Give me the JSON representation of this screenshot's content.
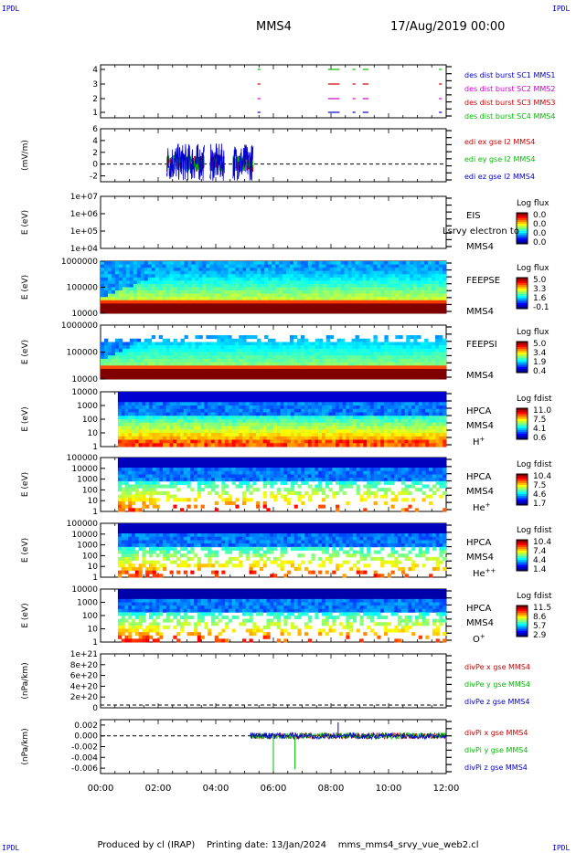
{
  "corner_labels": [
    "IPDL",
    "IPDL",
    "IPDL",
    "IPDL"
  ],
  "title": "MMS4",
  "date": "17/Aug/2019 00:00",
  "footer": {
    "produced_by": "Produced by cl (IRAP)",
    "printing_date": "Printing date: 13/Jan/2024",
    "file": "mms_mms4_srvy_vue_web2.cl"
  },
  "chart_data": [
    {
      "id": "burst",
      "type": "scatter",
      "yticks": [
        "1",
        "2",
        "3",
        "4"
      ],
      "legend": [
        {
          "text": "des dist burst SC1 MMS1",
          "color": "#0000cc"
        },
        {
          "text": "des dist burst SC2 MMS2",
          "color": "#cc00cc"
        },
        {
          "text": "des dist burst SC3 MMS3",
          "color": "#cc0000"
        },
        {
          "text": "des dist burst SC4 MMS4",
          "color": "#00bb00"
        }
      ],
      "intervals_hours": [
        [
          5.45,
          5.55
        ],
        [
          7.9,
          8.3
        ],
        [
          8.75,
          8.85
        ],
        [
          9.1,
          9.3
        ],
        [
          11.75,
          11.85
        ]
      ]
    },
    {
      "id": "edi",
      "type": "line",
      "ylabel": "(mV/m)",
      "yticks": [
        "6",
        "4",
        "2",
        "0",
        "-2"
      ],
      "ylim": [
        -3,
        6
      ],
      "legend": [
        {
          "text": "edi ex gse l2 MMS4",
          "color": "#cc0000"
        },
        {
          "text": "edi ey gse l2 MMS4",
          "color": "#00bb00"
        },
        {
          "text": "edi ez gse l2 MMS4",
          "color": "#0000cc"
        }
      ],
      "active_hours": [
        [
          2.3,
          3.6
        ],
        [
          3.8,
          4.3
        ],
        [
          4.6,
          5.3
        ]
      ]
    },
    {
      "id": "eis",
      "type": "heatmap",
      "ylabel": "E (eV)",
      "yticks": [
        "1e+07",
        "1e+06",
        "1e+05",
        "1e+04"
      ],
      "labels": [
        "EIS",
        "MMS4"
      ],
      "overlay": "Lsrvy electron to",
      "cbar_title": "Log flux",
      "cbar_ticks": [
        "0.0",
        "0.0",
        "0.0",
        "0.0"
      ]
    },
    {
      "id": "feepse",
      "type": "heatmap",
      "ylabel": "E (eV)",
      "yticks": [
        "1000000",
        "100000",
        "10000"
      ],
      "labels": [
        "FEEPSE",
        "MMS4"
      ],
      "cbar_title": "Log flux",
      "cbar_ticks": [
        "5.0",
        "3.3",
        "1.6",
        "-0.1"
      ]
    },
    {
      "id": "feepsi",
      "type": "heatmap",
      "ylabel": "E (eV)",
      "yticks": [
        "1000000",
        "100000",
        "10000"
      ],
      "labels": [
        "FEEPSI",
        "MMS4"
      ],
      "cbar_title": "Log flux",
      "cbar_ticks": [
        "5.0",
        "3.4",
        "1.9",
        "0.4"
      ]
    },
    {
      "id": "hpca_h",
      "type": "heatmap",
      "ylabel": "E (eV)",
      "yticks": [
        "10000",
        "1000",
        "100",
        "10",
        "1"
      ],
      "labels": [
        "HPCA",
        "MMS4"
      ],
      "species": "H",
      "species_sup": "+",
      "cbar_title": "Log fdist",
      "cbar_ticks": [
        "11.0",
        "7.5",
        "4.1",
        "0.6"
      ],
      "data_start_hours": 0.6
    },
    {
      "id": "hpca_he",
      "type": "heatmap",
      "ylabel": "E (eV)",
      "yticks": [
        "100000",
        "10000",
        "1000",
        "100",
        "10",
        "1"
      ],
      "labels": [
        "HPCA",
        "MMS4"
      ],
      "species": "He",
      "species_sup": "+",
      "cbar_title": "Log fdist",
      "cbar_ticks": [
        "10.4",
        "7.5",
        "4.6",
        "1.7"
      ],
      "data_start_hours": 0.6
    },
    {
      "id": "hpca_hepp",
      "type": "heatmap",
      "ylabel": "E (eV)",
      "yticks": [
        "100000",
        "10000",
        "1000",
        "100",
        "10",
        "1"
      ],
      "labels": [
        "HPCA",
        "MMS4"
      ],
      "species": "He",
      "species_sup": "++",
      "cbar_title": "Log fdist",
      "cbar_ticks": [
        "10.4",
        "7.4",
        "4.4",
        "1.4"
      ],
      "data_start_hours": 0.6
    },
    {
      "id": "hpca_o",
      "type": "heatmap",
      "ylabel": "E (eV)",
      "yticks": [
        "10000",
        "1000",
        "100",
        "10",
        "1"
      ],
      "labels": [
        "HPCA",
        "MMS4"
      ],
      "species": "O",
      "species_sup": "+",
      "cbar_title": "Log fdist",
      "cbar_ticks": [
        "11.5",
        "8.6",
        "5.7",
        "2.9"
      ],
      "data_start_hours": 0.6
    },
    {
      "id": "divpe",
      "type": "line",
      "ylabel": "(nPa/km)",
      "yticks": [
        "1e+21",
        "8e+20",
        "6e+20",
        "4e+20",
        "2e+20",
        "0"
      ],
      "legend": [
        {
          "text": "divPe x gse MMS4",
          "color": "#cc0000"
        },
        {
          "text": "divPe y gse MMS4",
          "color": "#00bb00"
        },
        {
          "text": "divPe z gse MMS4",
          "color": "#0000cc"
        }
      ]
    },
    {
      "id": "divpi",
      "type": "line",
      "ylabel": "(nPa/km)",
      "yticks": [
        "0.002",
        "0.000",
        "-0.002",
        "-0.004",
        "-0.006"
      ],
      "ylim": [
        -0.007,
        0.003
      ],
      "legend": [
        {
          "text": "divPi x gse MMS4",
          "color": "#cc0000"
        },
        {
          "text": "divPi y gse MMS4",
          "color": "#00bb00"
        },
        {
          "text": "divPi z gse MMS4",
          "color": "#0000cc"
        }
      ],
      "data_start_hours": 5.2,
      "spikes_hours": [
        [
          6.0,
          -0.0065
        ],
        [
          6.75,
          -0.0062
        ],
        [
          8.25,
          0.0025
        ]
      ]
    }
  ],
  "xaxis": {
    "ticks": [
      "00:00",
      "02:00",
      "04:00",
      "06:00",
      "08:00",
      "10:00",
      "12:00"
    ],
    "range_hours": [
      0,
      12
    ]
  }
}
